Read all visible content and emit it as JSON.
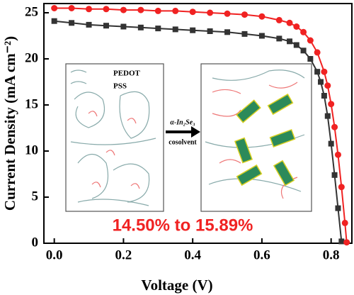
{
  "chart_data": {
    "type": "line",
    "xlabel": "Voltage (V)",
    "ylabel": "Current Density (mA cm⁻²)",
    "xlim": [
      -0.03,
      0.86
    ],
    "ylim": [
      0,
      26
    ],
    "xticks": [
      {
        "value": 0,
        "label": "0.0"
      },
      0.2,
      0.4,
      0.6,
      0.8
    ],
    "yticks": [
      0,
      5,
      10,
      15,
      20,
      25
    ],
    "annotations": [
      "PEDOT",
      "PSS",
      "α-In₂Se₃",
      "cosolvent",
      "14.50% to 15.89%"
    ],
    "series": [
      {
        "color": "#333333",
        "marker": "square",
        "x": [
          0,
          0.05,
          0.1,
          0.15,
          0.2,
          0.25,
          0.3,
          0.35,
          0.4,
          0.45,
          0.5,
          0.55,
          0.6,
          0.65,
          0.68,
          0.7,
          0.72,
          0.74,
          0.76,
          0.77,
          0.78,
          0.79,
          0.8,
          0.81,
          0.82,
          0.83
        ],
        "values": [
          24.1,
          23.9,
          23.7,
          23.6,
          23.5,
          23.4,
          23.3,
          23.2,
          23.1,
          23.0,
          22.9,
          22.7,
          22.5,
          22.2,
          21.9,
          21.5,
          20.9,
          20.0,
          18.6,
          17.5,
          16.0,
          13.8,
          10.8,
          7.4,
          3.8,
          0.2
        ]
      },
      {
        "color": "#f02222",
        "marker": "circle",
        "x": [
          0,
          0.05,
          0.1,
          0.15,
          0.2,
          0.25,
          0.3,
          0.35,
          0.4,
          0.45,
          0.5,
          0.55,
          0.6,
          0.65,
          0.68,
          0.7,
          0.72,
          0.74,
          0.76,
          0.78,
          0.79,
          0.8,
          0.81,
          0.82,
          0.83,
          0.84,
          0.845
        ],
        "values": [
          25.5,
          25.5,
          25.4,
          25.4,
          25.3,
          25.3,
          25.2,
          25.2,
          25.1,
          25.0,
          24.9,
          24.8,
          24.6,
          24.2,
          23.9,
          23.5,
          22.9,
          22.0,
          20.7,
          18.6,
          17.1,
          15.1,
          12.6,
          9.6,
          6.1,
          2.2,
          0.1
        ]
      }
    ]
  }
}
